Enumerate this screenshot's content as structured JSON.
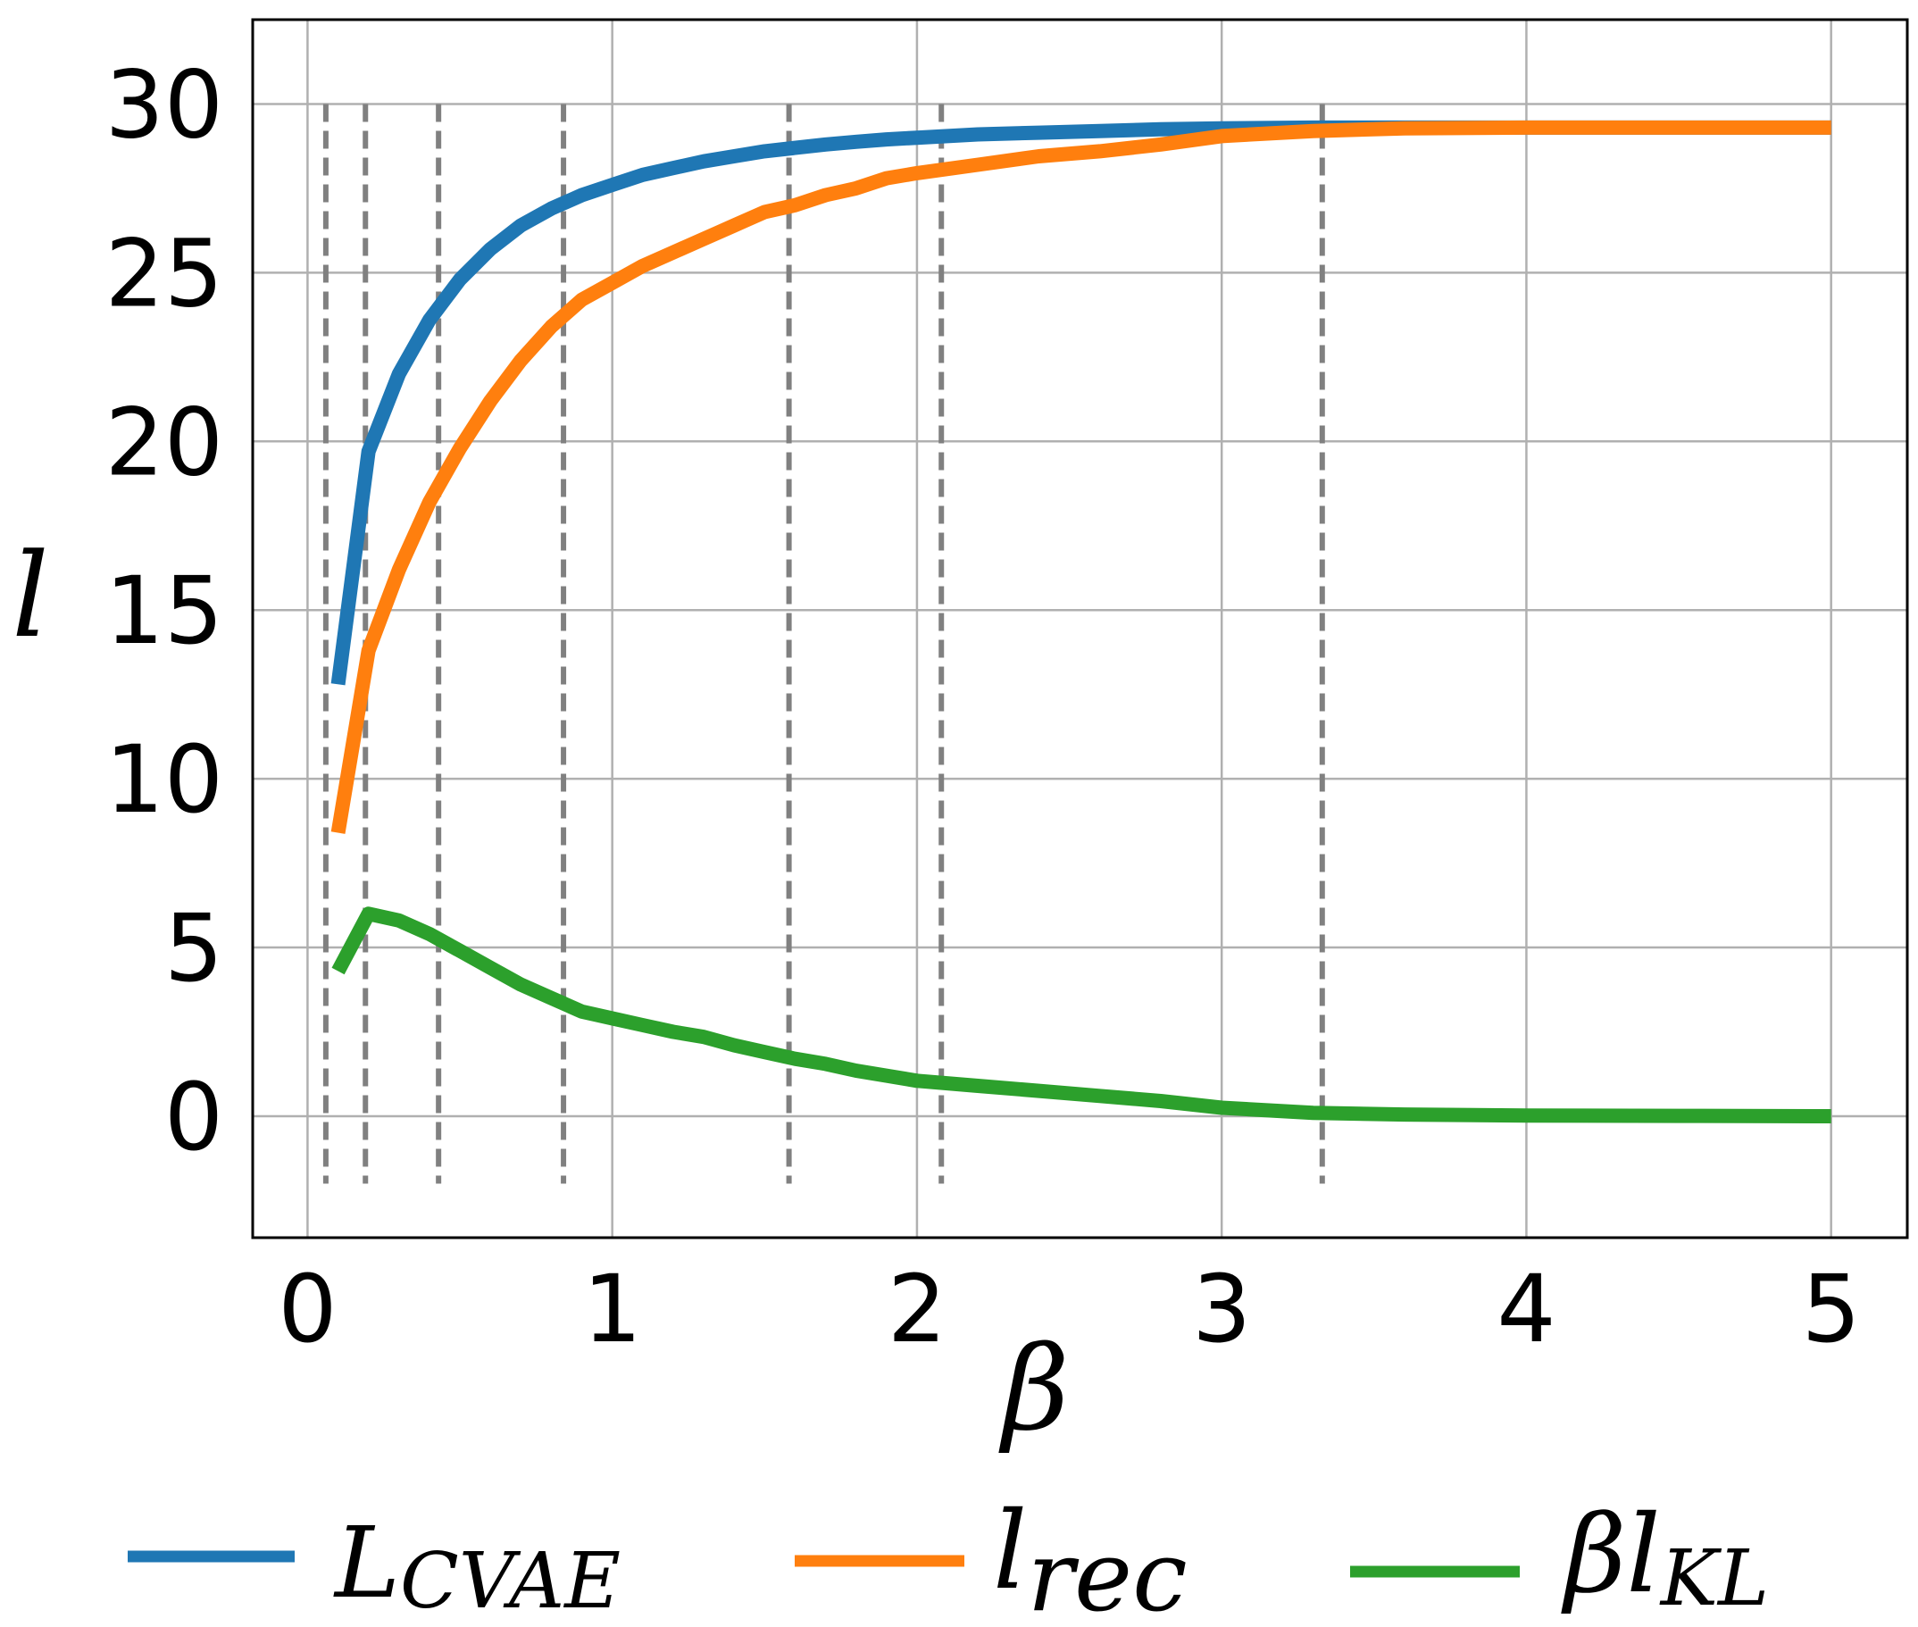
{
  "chart_data": {
    "type": "line",
    "title": "",
    "xlabel": "β",
    "ylabel": "l",
    "xlim": [
      -0.18,
      5.25
    ],
    "ylim": [
      -3.6,
      32.5
    ],
    "xticks": [
      0,
      1,
      2,
      3,
      4,
      5
    ],
    "yticks": [
      0,
      5,
      10,
      15,
      20,
      25,
      30
    ],
    "grid": true,
    "legend": {
      "placement": "bottom",
      "entries": [
        {
          "main": "L",
          "sub": "CVAE"
        },
        {
          "main": "l",
          "sub": "rec"
        },
        {
          "main": "βl",
          "sub": "KL"
        }
      ]
    },
    "vlines": [
      0.06,
      0.19,
      0.43,
      0.84,
      1.58,
      2.08,
      3.33
    ],
    "vline_ymin": -2.0,
    "vline_ymax": 30.0,
    "x": [
      0.1,
      0.2,
      0.3,
      0.4,
      0.5,
      0.6,
      0.7,
      0.8,
      0.9,
      1.0,
      1.1,
      1.2,
      1.3,
      1.4,
      1.5,
      1.6,
      1.7,
      1.8,
      1.9,
      2.0,
      2.2,
      2.4,
      2.6,
      2.8,
      3.0,
      3.3,
      3.6,
      4.0,
      4.5,
      5.0
    ],
    "series": [
      {
        "name": "L_CVAE",
        "color": "#1f77b4",
        "values": [
          12.8,
          19.7,
          22.0,
          23.6,
          24.8,
          25.7,
          26.4,
          26.9,
          27.3,
          27.6,
          27.9,
          28.1,
          28.3,
          28.45,
          28.6,
          28.7,
          28.8,
          28.88,
          28.95,
          29.0,
          29.1,
          29.15,
          29.2,
          29.25,
          29.28,
          29.3,
          29.3,
          29.3,
          29.3,
          29.3
        ]
      },
      {
        "name": "l_rec",
        "color": "#ff7f0e",
        "values": [
          8.4,
          13.8,
          16.2,
          18.2,
          19.8,
          21.2,
          22.4,
          23.4,
          24.2,
          24.7,
          25.2,
          25.6,
          26.0,
          26.4,
          26.8,
          27.0,
          27.3,
          27.5,
          27.8,
          27.95,
          28.2,
          28.45,
          28.6,
          28.8,
          29.05,
          29.2,
          29.28,
          29.3,
          29.3,
          29.3
        ]
      },
      {
        "name": "βl_KL",
        "color": "#2ca02c",
        "values": [
          4.3,
          6.0,
          5.8,
          5.4,
          4.9,
          4.4,
          3.9,
          3.5,
          3.1,
          2.9,
          2.7,
          2.5,
          2.35,
          2.1,
          1.9,
          1.7,
          1.55,
          1.35,
          1.2,
          1.05,
          0.9,
          0.75,
          0.6,
          0.45,
          0.25,
          0.1,
          0.05,
          0.02,
          0.01,
          0.0
        ]
      }
    ]
  }
}
